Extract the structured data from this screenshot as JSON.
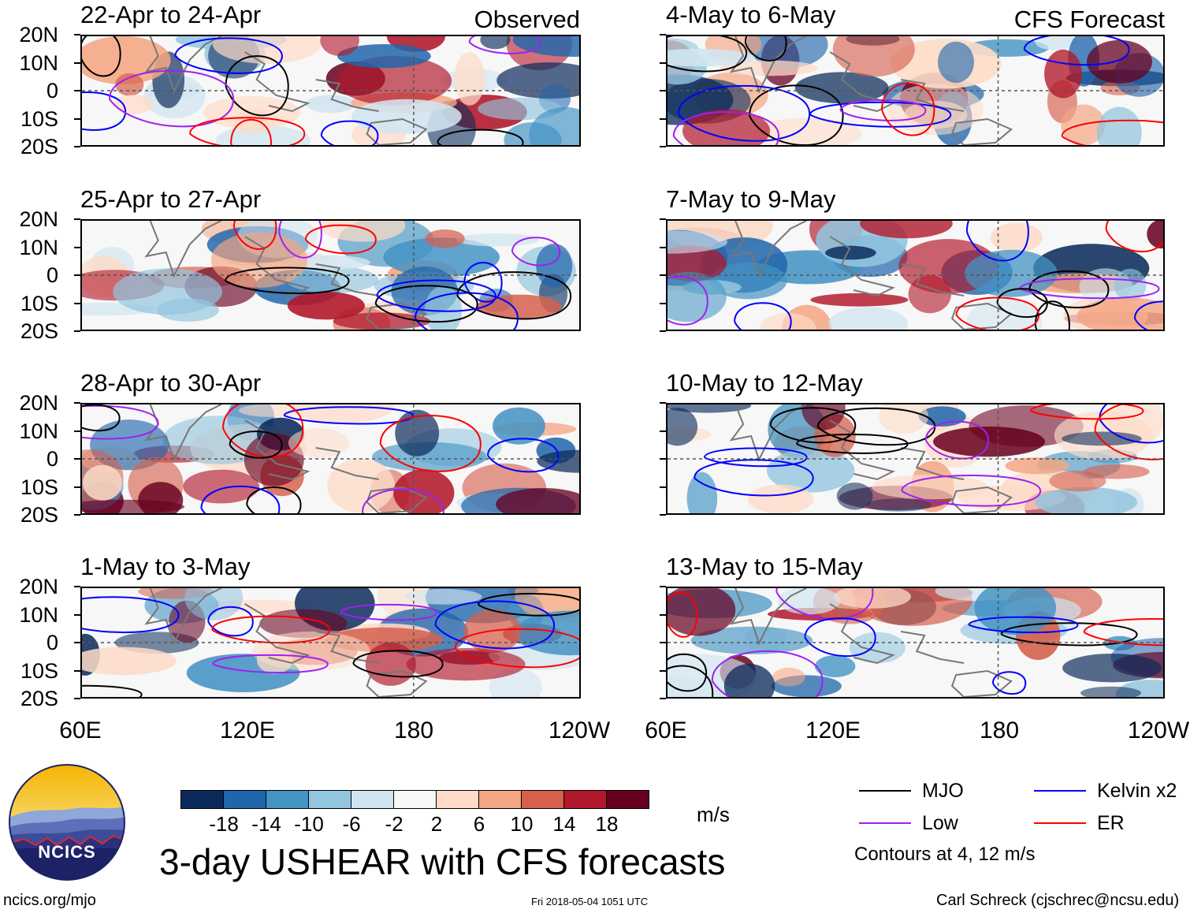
{
  "figure": {
    "main_title": "3-day USHEAR with CFS forecasts",
    "left_header": "Observed",
    "right_header": "CFS Forecast",
    "site": "ncics.org/mjo",
    "timestamp": "Fri 2018-05-04 1051 UTC",
    "credit": "Carl Schreck (cjschrec@ncsu.edu)",
    "logo_text": "NCICS"
  },
  "panels": {
    "observed": [
      {
        "title": "22-Apr to 24-Apr"
      },
      {
        "title": "25-Apr to 27-Apr"
      },
      {
        "title": "28-Apr to 30-Apr"
      },
      {
        "title": "1-May to 3-May"
      }
    ],
    "forecast": [
      {
        "title": "4-May to 6-May"
      },
      {
        "title": "7-May to 9-May"
      },
      {
        "title": "10-May to 12-May"
      },
      {
        "title": "13-May to 15-May"
      }
    ]
  },
  "axes": {
    "lat_labels": [
      "20N",
      "10N",
      "0",
      "10S",
      "20S"
    ],
    "lon_labels": [
      "60E",
      "120E",
      "180",
      "120W"
    ]
  },
  "colorbar": {
    "unit": "m/s",
    "ticks": [
      "-18",
      "-14",
      "-10",
      "-6",
      "-2",
      "2",
      "6",
      "10",
      "14",
      "18"
    ],
    "colors": [
      "#0b2a5a",
      "#2166ac",
      "#4393c3",
      "#92c5de",
      "#d1e5f0",
      "#f7f7f7",
      "#fddbc7",
      "#f4a582",
      "#d6604d",
      "#b2182b",
      "#67001f"
    ]
  },
  "legend": {
    "items": [
      {
        "label": "MJO",
        "color": "#000000"
      },
      {
        "label": "Kelvin x2",
        "color": "#0000ff"
      },
      {
        "label": "Low",
        "color": "#a020f0"
      },
      {
        "label": "ER",
        "color": "#ff0000"
      }
    ],
    "note": "Contours at 4, 12 m/s"
  }
}
